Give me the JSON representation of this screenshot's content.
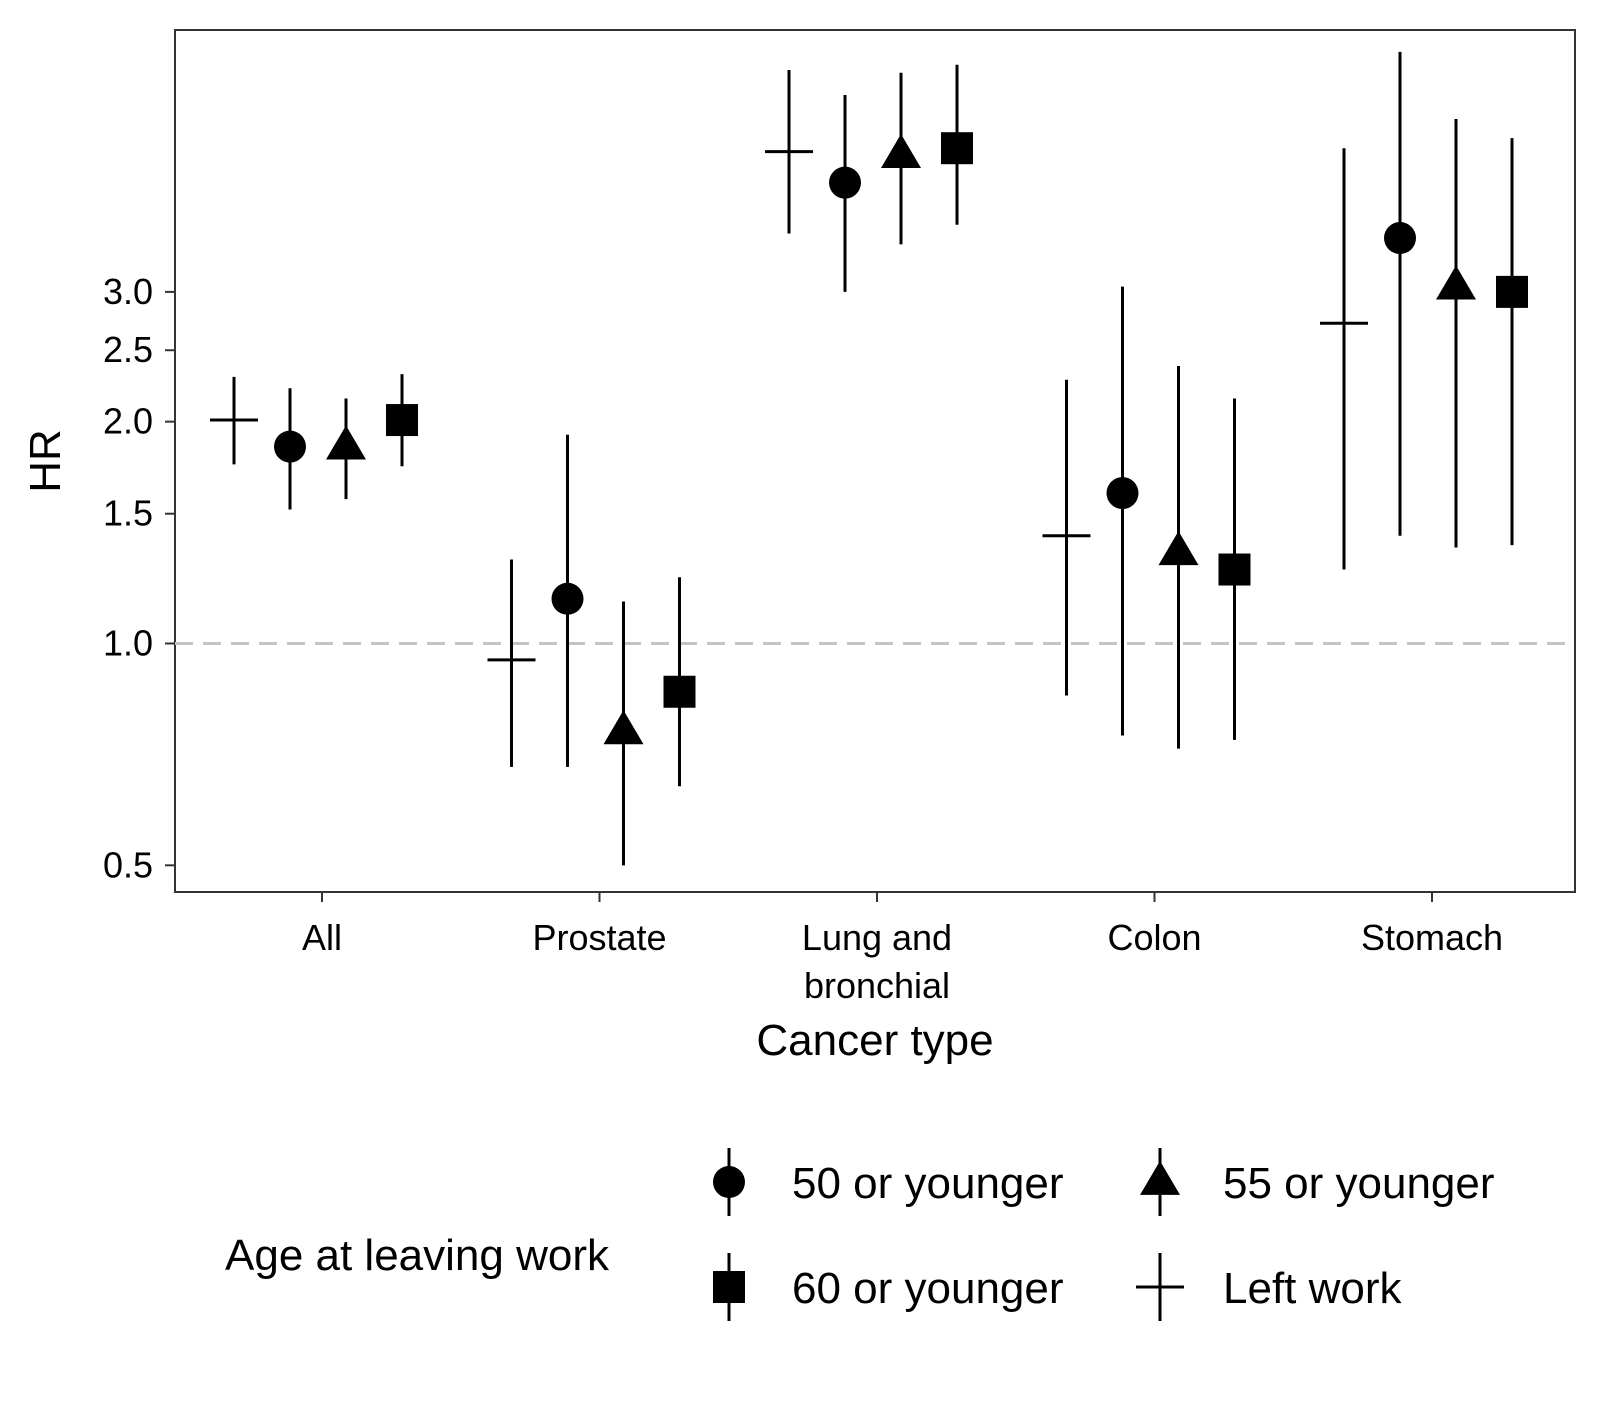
{
  "chart_data": {
    "type": "scatter",
    "subtype": "pointrange",
    "title": "",
    "xlabel": "Cancer type",
    "ylabel": "HR",
    "y_scale": "log",
    "ylim": [
      0.46,
      6.8
    ],
    "y_ticks": [
      0.5,
      1.0,
      1.5,
      2.0,
      2.5,
      3.0
    ],
    "y_tick_labels": [
      "0.5",
      "1.0",
      "1.5",
      "2.0",
      "2.5",
      "3.0"
    ],
    "reference_line": 1.0,
    "grid": false,
    "categories": [
      [
        "All"
      ],
      [
        "Prostate"
      ],
      [
        "Lung and",
        "bronchial"
      ],
      [
        "Colon"
      ],
      [
        "Stomach"
      ]
    ],
    "legend": {
      "title": "Age at leaving work",
      "position": "bottom",
      "order": [
        0,
        1,
        2,
        3
      ]
    },
    "series": [
      {
        "name": "Left work",
        "shape": "plus",
        "values": [
          2.01,
          0.95,
          4.65,
          1.4,
          2.72
        ],
        "lower": [
          1.75,
          0.68,
          3.6,
          0.85,
          1.26
        ],
        "upper": [
          2.3,
          1.3,
          6.0,
          2.28,
          4.7
        ]
      },
      {
        "name": "50 or younger",
        "shape": "circle",
        "values": [
          1.85,
          1.15,
          4.22,
          1.6,
          3.55
        ],
        "lower": [
          1.52,
          0.68,
          3.0,
          0.75,
          1.4
        ],
        "upper": [
          2.22,
          1.92,
          5.55,
          3.05,
          6.35
        ]
      },
      {
        "name": "55 or younger",
        "shape": "triangle",
        "values": [
          1.85,
          0.76,
          4.6,
          1.33,
          3.05
        ],
        "lower": [
          1.57,
          0.5,
          3.48,
          0.72,
          1.35
        ],
        "upper": [
          2.15,
          1.14,
          5.95,
          2.38,
          5.15
        ]
      },
      {
        "name": "60 or younger",
        "shape": "square",
        "values": [
          2.01,
          0.86,
          4.7,
          1.26,
          3.0
        ],
        "lower": [
          1.74,
          0.64,
          3.7,
          0.74,
          1.36
        ],
        "upper": [
          2.32,
          1.23,
          6.1,
          2.15,
          4.85
        ]
      }
    ]
  }
}
